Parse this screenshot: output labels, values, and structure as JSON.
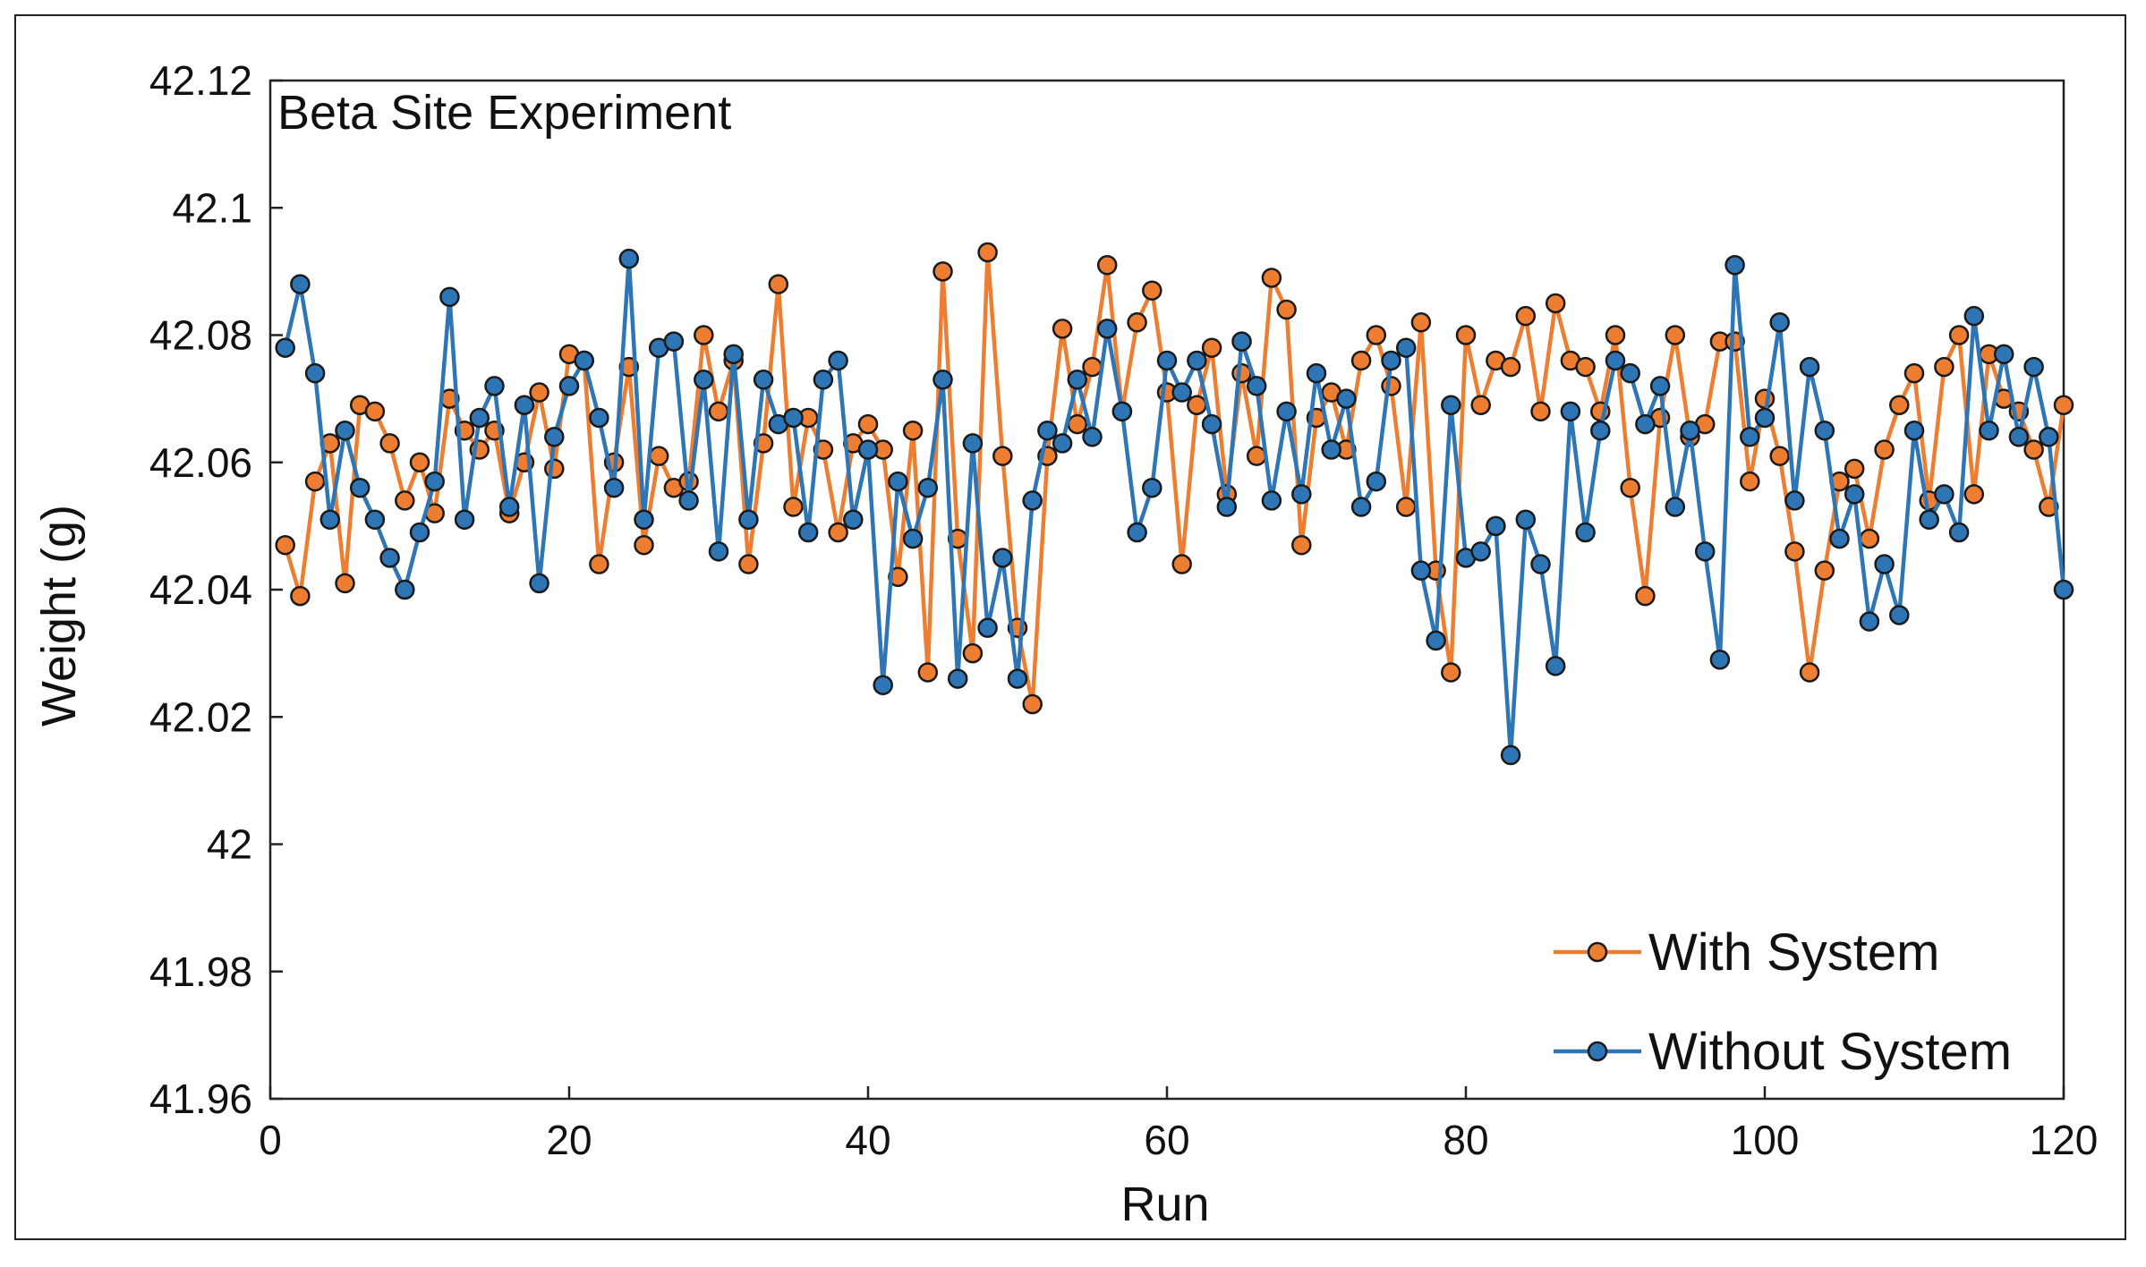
{
  "chart_data": {
    "type": "line",
    "title": "",
    "annotation": "Beta Site Experiment",
    "xlabel": "Run",
    "ylabel": "Weight (g)",
    "xlim": [
      0,
      120
    ],
    "ylim": [
      41.96,
      42.12
    ],
    "xticks": [
      "0",
      "20",
      "40",
      "60",
      "80",
      "100",
      "120"
    ],
    "yticks": [
      "41.96",
      "41.98",
      "42",
      "42.02",
      "42.04",
      "42.06",
      "42.08",
      "42.1",
      "42.12"
    ],
    "grid": false,
    "legend_position": "bottom-right",
    "x": [
      1,
      2,
      3,
      4,
      5,
      6,
      7,
      8,
      9,
      10,
      11,
      12,
      13,
      14,
      15,
      16,
      17,
      18,
      19,
      20,
      21,
      22,
      23,
      24,
      25,
      26,
      27,
      28,
      29,
      30,
      31,
      32,
      33,
      34,
      35,
      36,
      37,
      38,
      39,
      40,
      41,
      42,
      43,
      44,
      45,
      46,
      47,
      48,
      49,
      50,
      51,
      52,
      53,
      54,
      55,
      56,
      57,
      58,
      59,
      60,
      61,
      62,
      63,
      64,
      65,
      66,
      67,
      68,
      69,
      70,
      71,
      72,
      73,
      74,
      75,
      76,
      77,
      78,
      79,
      80,
      81,
      82,
      83,
      84,
      85,
      86,
      87,
      88,
      89,
      90,
      91,
      92,
      93,
      94,
      95,
      96,
      97,
      98,
      99,
      100,
      101,
      102,
      103,
      104,
      105,
      106,
      107,
      108,
      109,
      110,
      111,
      112,
      113,
      114,
      115,
      116,
      117,
      118,
      119,
      120
    ],
    "series": [
      {
        "name": "With System",
        "color": "#ED7D31",
        "values": [
          42.047,
          42.039,
          42.057,
          42.063,
          42.041,
          42.069,
          42.068,
          42.063,
          42.054,
          42.06,
          42.052,
          42.07,
          42.065,
          42.062,
          42.065,
          42.052,
          42.06,
          42.071,
          42.059,
          42.077,
          42.076,
          42.044,
          42.06,
          42.075,
          42.047,
          42.061,
          42.056,
          42.057,
          42.08,
          42.068,
          42.076,
          42.044,
          42.063,
          42.088,
          42.053,
          42.067,
          42.062,
          42.049,
          42.063,
          42.066,
          42.062,
          42.042,
          42.065,
          42.027,
          42.09,
          42.048,
          42.03,
          42.093,
          42.061,
          42.034,
          42.022,
          42.061,
          42.081,
          42.066,
          42.075,
          42.091,
          42.068,
          42.082,
          42.087,
          42.071,
          42.044,
          42.069,
          42.078,
          42.055,
          42.074,
          42.061,
          42.089,
          42.084,
          42.047,
          42.067,
          42.071,
          42.062,
          42.076,
          42.08,
          42.072,
          42.053,
          42.082,
          42.043,
          42.027,
          42.08,
          42.069,
          42.076,
          42.075,
          42.083,
          42.068,
          42.085,
          42.076,
          42.075,
          42.068,
          42.08,
          42.056,
          42.039,
          42.067,
          42.08,
          42.064,
          42.066,
          42.079,
          42.079,
          42.057,
          42.07,
          42.061,
          42.046,
          42.027,
          42.043,
          42.057,
          42.059,
          42.048,
          42.062,
          42.069,
          42.074,
          42.054,
          42.075,
          42.08,
          42.055,
          42.077,
          42.07,
          42.068,
          42.062,
          42.053,
          42.069
        ]
      },
      {
        "name": "Without System",
        "color": "#2E75B6",
        "values": [
          42.078,
          42.088,
          42.074,
          42.051,
          42.065,
          42.056,
          42.051,
          42.045,
          42.04,
          42.049,
          42.057,
          42.086,
          42.051,
          42.067,
          42.072,
          42.053,
          42.069,
          42.041,
          42.064,
          42.072,
          42.076,
          42.067,
          42.056,
          42.092,
          42.051,
          42.078,
          42.079,
          42.054,
          42.073,
          42.046,
          42.077,
          42.051,
          42.073,
          42.066,
          42.067,
          42.049,
          42.073,
          42.076,
          42.051,
          42.062,
          42.025,
          42.057,
          42.048,
          42.056,
          42.073,
          42.026,
          42.063,
          42.034,
          42.045,
          42.026,
          42.054,
          42.065,
          42.063,
          42.073,
          42.064,
          42.081,
          42.068,
          42.049,
          42.056,
          42.076,
          42.071,
          42.076,
          42.066,
          42.053,
          42.079,
          42.072,
          42.054,
          42.068,
          42.055,
          42.074,
          42.062,
          42.07,
          42.053,
          42.057,
          42.076,
          42.078,
          42.043,
          42.032,
          42.069,
          42.045,
          42.046,
          42.05,
          42.014,
          42.051,
          42.044,
          42.028,
          42.068,
          42.049,
          42.065,
          42.076,
          42.074,
          42.066,
          42.072,
          42.053,
          42.065,
          42.046,
          42.029,
          42.091,
          42.064,
          42.067,
          42.082,
          42.054,
          42.075,
          42.065,
          42.048,
          42.055,
          42.035,
          42.044,
          42.036,
          42.065,
          42.051,
          42.055,
          42.049,
          42.083,
          42.065,
          42.077,
          42.064,
          42.075,
          42.064,
          42.04
        ]
      }
    ]
  }
}
